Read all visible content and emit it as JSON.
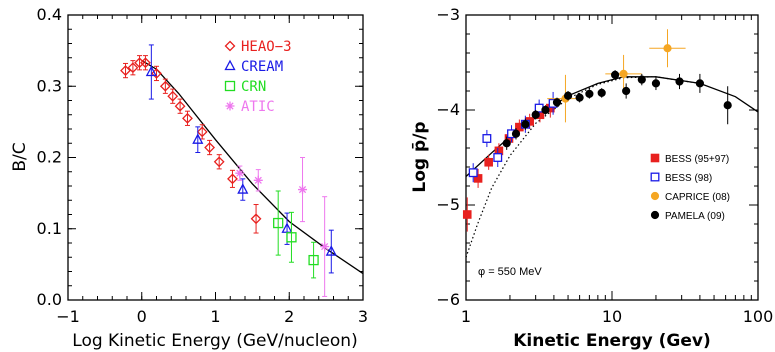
{
  "chart_data": [
    {
      "type": "scatter",
      "xlabel": "Log Kinetic Energy (GeV/nucleon)",
      "ylabel": "B/C",
      "xlim": [
        -1,
        3
      ],
      "ylim": [
        0,
        0.4
      ],
      "x_ticks": [
        "−1",
        "0",
        "1",
        "2",
        "3"
      ],
      "y_ticks": [
        "0.0",
        "0.1",
        "0.2",
        "0.3",
        "0.4"
      ],
      "legend_position": "top-right",
      "series": [
        {
          "name": "HEAO−3",
          "color": "#e8211f",
          "marker": "diamond",
          "points": [
            {
              "x": -0.22,
              "y": 0.322,
              "err": 0.01
            },
            {
              "x": -0.12,
              "y": 0.326,
              "err": 0.01
            },
            {
              "x": -0.03,
              "y": 0.333,
              "err": 0.01
            },
            {
              "x": 0.05,
              "y": 0.333,
              "err": 0.01
            },
            {
              "x": 0.2,
              "y": 0.318,
              "err": 0.01
            },
            {
              "x": 0.32,
              "y": 0.3,
              "err": 0.01
            },
            {
              "x": 0.42,
              "y": 0.286,
              "err": 0.01
            },
            {
              "x": 0.52,
              "y": 0.272,
              "err": 0.01
            },
            {
              "x": 0.62,
              "y": 0.255,
              "err": 0.01
            },
            {
              "x": 0.82,
              "y": 0.236,
              "err": 0.01
            },
            {
              "x": 0.92,
              "y": 0.214,
              "err": 0.01
            },
            {
              "x": 1.05,
              "y": 0.194,
              "err": 0.01
            },
            {
              "x": 1.23,
              "y": 0.17,
              "err": 0.012
            },
            {
              "x": 1.55,
              "y": 0.114,
              "err": 0.02
            }
          ]
        },
        {
          "name": "CREAM",
          "color": "#1a1ae6",
          "marker": "triangle",
          "points": [
            {
              "x": 0.13,
              "y": 0.32,
              "err": 0.038
            },
            {
              "x": 0.76,
              "y": 0.225,
              "err": 0.018
            },
            {
              "x": 1.37,
              "y": 0.155,
              "err": 0.015
            },
            {
              "x": 1.97,
              "y": 0.1,
              "err": 0.022
            },
            {
              "x": 2.57,
              "y": 0.068,
              "err": 0.03
            }
          ]
        },
        {
          "name": "CRN",
          "color": "#22dd22",
          "marker": "square",
          "points": [
            {
              "x": 1.85,
              "y": 0.108,
              "err": 0.045
            },
            {
              "x": 2.03,
              "y": 0.088,
              "err": 0.035
            },
            {
              "x": 2.33,
              "y": 0.056,
              "err": 0.025
            }
          ]
        },
        {
          "name": "ATIC",
          "color": "#ee77ee",
          "marker": "star",
          "points": [
            {
              "x": 1.33,
              "y": 0.178,
              "err": 0.01
            },
            {
              "x": 1.58,
              "y": 0.168,
              "err": 0.015
            },
            {
              "x": 2.18,
              "y": 0.155,
              "err": 0.045
            },
            {
              "x": 2.48,
              "y": 0.075,
              "err": 0.07
            }
          ]
        }
      ],
      "model_curve": [
        [
          0.0,
          0.336
        ],
        [
          0.2,
          0.324
        ],
        [
          0.5,
          0.29
        ],
        [
          1.0,
          0.225
        ],
        [
          1.5,
          0.163
        ],
        [
          2.0,
          0.11
        ],
        [
          2.5,
          0.072
        ],
        [
          3.0,
          0.037
        ]
      ]
    },
    {
      "type": "scatter",
      "xlabel": "Kinetic Energy (Gev)",
      "ylabel": "Log p̄/p",
      "x_scale": "log",
      "xlim": [
        1,
        100
      ],
      "ylim": [
        -6,
        -3
      ],
      "x_ticks": [
        "1",
        "10",
        "100"
      ],
      "y_ticks": [
        "−3",
        "−4",
        "−5",
        "−6"
      ],
      "annotation": "φ = 550 MeV",
      "legend_position": "right",
      "series": [
        {
          "name": "BESS (95+97)",
          "color": "#e8211f",
          "marker": "square-filled",
          "points": [
            {
              "x": 1.02,
              "y": -5.1,
              "err": 0.18
            },
            {
              "x": 1.21,
              "y": -4.72,
              "err": 0.1
            },
            {
              "x": 1.43,
              "y": -4.55,
              "err": 0.08
            },
            {
              "x": 1.68,
              "y": -4.43,
              "err": 0.08
            },
            {
              "x": 1.97,
              "y": -4.3,
              "err": 0.08
            },
            {
              "x": 2.32,
              "y": -4.18,
              "err": 0.08
            },
            {
              "x": 2.73,
              "y": -4.12,
              "err": 0.08
            },
            {
              "x": 3.21,
              "y": -4.05,
              "err": 0.08
            },
            {
              "x": 3.78,
              "y": -3.98,
              "err": 0.1
            }
          ]
        },
        {
          "name": "BESS (98)",
          "color": "#1a1ae6",
          "marker": "square-open",
          "points": [
            {
              "x": 1.12,
              "y": -4.66,
              "err": 0.1
            },
            {
              "x": 1.39,
              "y": -4.3,
              "err": 0.09
            },
            {
              "x": 1.65,
              "y": -4.5,
              "err": 0.1
            },
            {
              "x": 2.05,
              "y": -4.25,
              "err": 0.09
            },
            {
              "x": 2.55,
              "y": -4.15,
              "err": 0.09
            },
            {
              "x": 3.17,
              "y": -3.98,
              "err": 0.09
            },
            {
              "x": 3.95,
              "y": -3.93,
              "err": 0.12
            }
          ]
        },
        {
          "name": "CAPRICE (08)",
          "color": "#f5a623",
          "marker": "circle-filled",
          "points": [
            {
              "x": 4.8,
              "y": -3.88,
              "err": 0.25
            },
            {
              "x": 12.0,
              "y": -3.62,
              "err": 0.2
            },
            {
              "x": 24.0,
              "y": -3.35,
              "err": 0.2
            }
          ]
        },
        {
          "name": "PAMELA (09)",
          "color": "#000000",
          "marker": "circle-filled",
          "points": [
            {
              "x": 1.9,
              "y": -4.35,
              "err": 0.07
            },
            {
              "x": 2.2,
              "y": -4.25,
              "err": 0.06
            },
            {
              "x": 2.55,
              "y": -4.15,
              "err": 0.06
            },
            {
              "x": 3.0,
              "y": -4.05,
              "err": 0.05
            },
            {
              "x": 3.5,
              "y": -4.0,
              "err": 0.05
            },
            {
              "x": 4.2,
              "y": -3.92,
              "err": 0.05
            },
            {
              "x": 5.0,
              "y": -3.85,
              "err": 0.05
            },
            {
              "x": 6.0,
              "y": -3.87,
              "err": 0.05
            },
            {
              "x": 7.0,
              "y": -3.83,
              "err": 0.05
            },
            {
              "x": 8.5,
              "y": -3.82,
              "err": 0.05
            },
            {
              "x": 10.5,
              "y": -3.63,
              "err": 0.05
            },
            {
              "x": 12.5,
              "y": -3.8,
              "err": 0.08
            },
            {
              "x": 16.0,
              "y": -3.68,
              "err": 0.06
            },
            {
              "x": 20.0,
              "y": -3.72,
              "err": 0.07
            },
            {
              "x": 29.0,
              "y": -3.7,
              "err": 0.08
            },
            {
              "x": 40.0,
              "y": -3.72,
              "err": 0.1
            },
            {
              "x": 62.0,
              "y": -3.95,
              "err": 0.2
            }
          ]
        }
      ],
      "model_curve_solid": [
        [
          1.0,
          -4.7
        ],
        [
          1.5,
          -4.45
        ],
        [
          2.0,
          -4.28
        ],
        [
          3.0,
          -4.08
        ],
        [
          5.0,
          -3.85
        ],
        [
          8.0,
          -3.72
        ],
        [
          12.0,
          -3.65
        ],
        [
          20.0,
          -3.65
        ],
        [
          40.0,
          -3.72
        ],
        [
          70.0,
          -3.86
        ],
        [
          100.0,
          -4.02
        ]
      ],
      "model_curve_dotted": [
        [
          1.0,
          -5.55
        ],
        [
          1.2,
          -5.2
        ],
        [
          1.5,
          -4.82
        ],
        [
          2.0,
          -4.48
        ],
        [
          3.0,
          -4.14
        ],
        [
          5.0,
          -3.88
        ],
        [
          8.0,
          -3.73
        ],
        [
          12.0,
          -3.66
        ],
        [
          20.0,
          -3.65
        ],
        [
          40.0,
          -3.72
        ]
      ]
    }
  ]
}
